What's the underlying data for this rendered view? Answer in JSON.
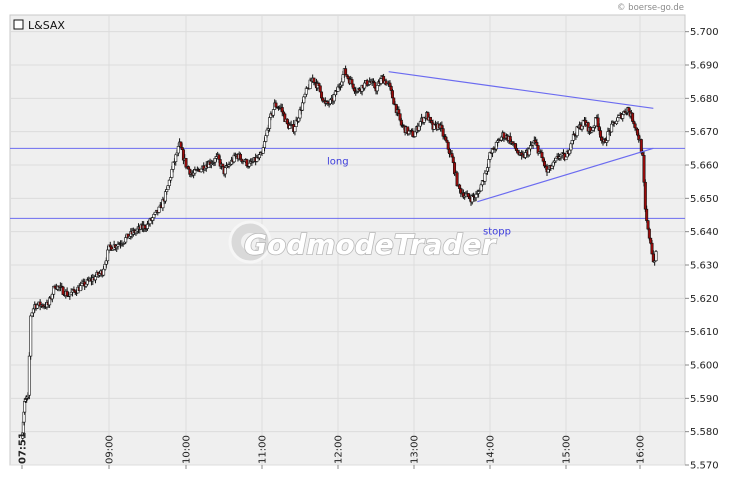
{
  "credit": "© boerse-go.de",
  "watermark": "GodmodeTrader",
  "chart_data": {
    "type": "candlestick",
    "instrument": "L&SAX",
    "ylim": [
      5.57,
      5.705
    ],
    "y_ticks": [
      "5.700",
      "5.690",
      "5.680",
      "5.670",
      "5.660",
      "5.650",
      "5.640",
      "5.630",
      "5.620",
      "5.610",
      "5.600",
      "5.590",
      "5.580",
      "5.570"
    ],
    "x_tick_labels": [
      "07:51",
      "09:00",
      "10:00",
      "11:00",
      "12:00",
      "13:00",
      "14:00",
      "15:00",
      "16:00"
    ],
    "horizontal_lines": [
      {
        "label": "long",
        "value": 5.665
      },
      {
        "label": "stopp",
        "value": 5.644
      }
    ],
    "trendlines": [
      {
        "from": [
          "12:40",
          5.688
        ],
        "to": [
          "16:10",
          5.677
        ]
      },
      {
        "from": [
          "13:50",
          5.649
        ],
        "to": [
          "16:10",
          5.665
        ]
      }
    ],
    "price_path": [
      [
        "07:51",
        5.578
      ],
      [
        "07:55",
        5.589
      ],
      [
        "08:00",
        5.59
      ],
      [
        "08:02",
        5.615
      ],
      [
        "08:05",
        5.618
      ],
      [
        "08:15",
        5.618
      ],
      [
        "08:20",
        5.624
      ],
      [
        "08:30",
        5.621
      ],
      [
        "08:45",
        5.625
      ],
      [
        "08:55",
        5.628
      ],
      [
        "09:00",
        5.635
      ],
      [
        "09:10",
        5.637
      ],
      [
        "09:20",
        5.64
      ],
      [
        "09:30",
        5.642
      ],
      [
        "09:40",
        5.647
      ],
      [
        "09:45",
        5.652
      ],
      [
        "09:50",
        5.66
      ],
      [
        "09:55",
        5.666
      ],
      [
        "10:00",
        5.66
      ],
      [
        "10:05",
        5.657
      ],
      [
        "10:15",
        5.66
      ],
      [
        "10:25",
        5.662
      ],
      [
        "10:30",
        5.658
      ],
      [
        "10:40",
        5.663
      ],
      [
        "10:50",
        5.66
      ],
      [
        "11:00",
        5.663
      ],
      [
        "11:05",
        5.672
      ],
      [
        "11:10",
        5.678
      ],
      [
        "11:15",
        5.677
      ],
      [
        "11:20",
        5.672
      ],
      [
        "11:25",
        5.671
      ],
      [
        "11:30",
        5.676
      ],
      [
        "11:35",
        5.682
      ],
      [
        "11:40",
        5.686
      ],
      [
        "11:45",
        5.683
      ],
      [
        "11:50",
        5.678
      ],
      [
        "11:55",
        5.679
      ],
      [
        "12:00",
        5.683
      ],
      [
        "12:05",
        5.688
      ],
      [
        "12:10",
        5.685
      ],
      [
        "12:15",
        5.682
      ],
      [
        "12:20",
        5.684
      ],
      [
        "12:25",
        5.685
      ],
      [
        "12:30",
        5.683
      ],
      [
        "12:35",
        5.686
      ],
      [
        "12:40",
        5.684
      ],
      [
        "12:45",
        5.678
      ],
      [
        "12:50",
        5.672
      ],
      [
        "12:55",
        5.67
      ],
      [
        "13:00",
        5.669
      ],
      [
        "13:05",
        5.673
      ],
      [
        "13:10",
        5.675
      ],
      [
        "13:15",
        5.671
      ],
      [
        "13:20",
        5.672
      ],
      [
        "13:25",
        5.667
      ],
      [
        "13:30",
        5.662
      ],
      [
        "13:35",
        5.653
      ],
      [
        "13:40",
        5.651
      ],
      [
        "13:45",
        5.65
      ],
      [
        "13:50",
        5.651
      ],
      [
        "13:55",
        5.656
      ],
      [
        "14:00",
        5.663
      ],
      [
        "14:05",
        5.666
      ],
      [
        "14:10",
        5.669
      ],
      [
        "14:15",
        5.668
      ],
      [
        "14:20",
        5.665
      ],
      [
        "14:25",
        5.662
      ],
      [
        "14:30",
        5.664
      ],
      [
        "14:35",
        5.667
      ],
      [
        "14:40",
        5.663
      ],
      [
        "14:45",
        5.658
      ],
      [
        "14:50",
        5.66
      ],
      [
        "14:55",
        5.663
      ],
      [
        "15:00",
        5.662
      ],
      [
        "15:05",
        5.668
      ],
      [
        "15:10",
        5.671
      ],
      [
        "15:15",
        5.673
      ],
      [
        "15:20",
        5.67
      ],
      [
        "15:25",
        5.674
      ],
      [
        "15:30",
        5.666
      ],
      [
        "15:35",
        5.67
      ],
      [
        "15:40",
        5.673
      ],
      [
        "15:45",
        5.675
      ],
      [
        "15:50",
        5.677
      ],
      [
        "15:55",
        5.673
      ],
      [
        "16:00",
        5.667
      ],
      [
        "16:02",
        5.662
      ],
      [
        "16:04",
        5.646
      ],
      [
        "16:06",
        5.64
      ],
      [
        "16:08",
        5.637
      ],
      [
        "16:10",
        5.631
      ],
      [
        "16:12",
        5.633
      ]
    ]
  }
}
